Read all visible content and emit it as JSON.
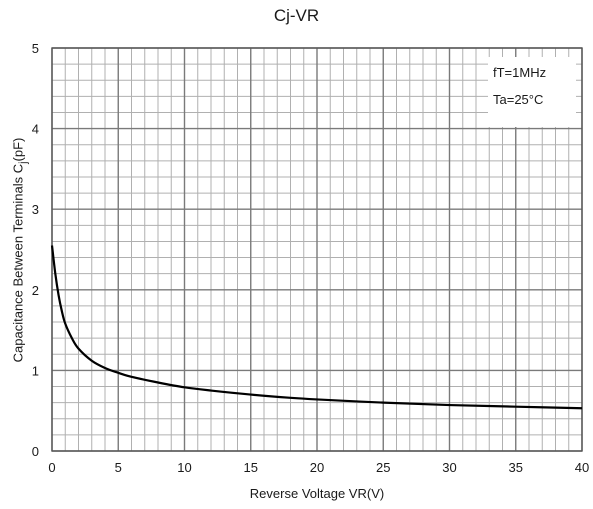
{
  "chart_data": {
    "type": "line",
    "title": "Cj-VR",
    "xlabel": "Reverse Voltage   VR(V)",
    "ylabel": "Capacitance Between Terminals C",
    "ylabel_subscript": "j",
    "ylabel_unit": "(pF)",
    "xlim": [
      0,
      40
    ],
    "ylim": [
      0,
      5
    ],
    "x_ticks": [
      0,
      5,
      10,
      15,
      20,
      25,
      30,
      35,
      40
    ],
    "y_ticks": [
      0,
      1,
      2,
      3,
      4,
      5
    ],
    "grid": true,
    "annotations": [
      "fT=1MHz",
      "Ta=25°C"
    ],
    "annotation_position": "top-right",
    "series": [
      {
        "x": [
          0,
          0.25,
          0.5,
          0.75,
          1,
          1.5,
          2,
          3,
          4,
          5,
          6,
          8,
          10,
          12,
          15,
          18,
          20,
          25,
          30,
          35,
          40
        ],
        "values": [
          2.55,
          2.2,
          1.93,
          1.73,
          1.58,
          1.4,
          1.27,
          1.12,
          1.03,
          0.97,
          0.92,
          0.85,
          0.79,
          0.75,
          0.7,
          0.66,
          0.64,
          0.6,
          0.57,
          0.55,
          0.53
        ]
      }
    ]
  }
}
